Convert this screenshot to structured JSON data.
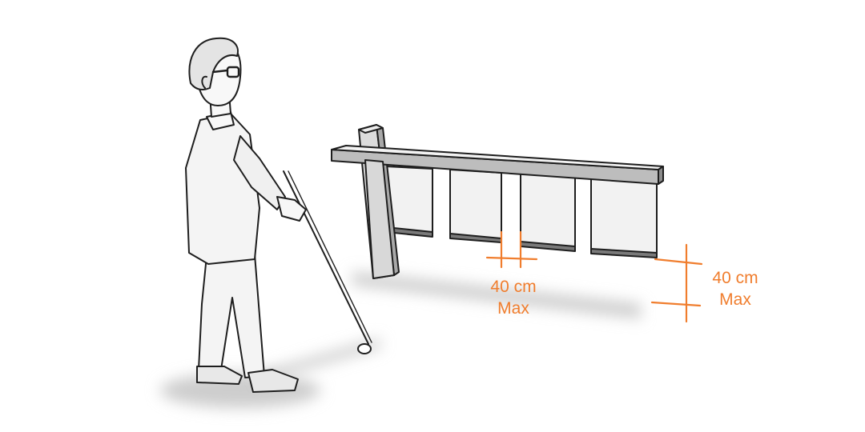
{
  "annotations": {
    "gap": {
      "value": "40 cm",
      "qualifier": "Max"
    },
    "height": {
      "value": "40 cm",
      "qualifier": "Max"
    }
  },
  "colors": {
    "annotation": "#f07d2d",
    "ink": "#1e1e1e",
    "shadow": "#c8c8c8",
    "figure_fill": "#f4f4f4"
  }
}
